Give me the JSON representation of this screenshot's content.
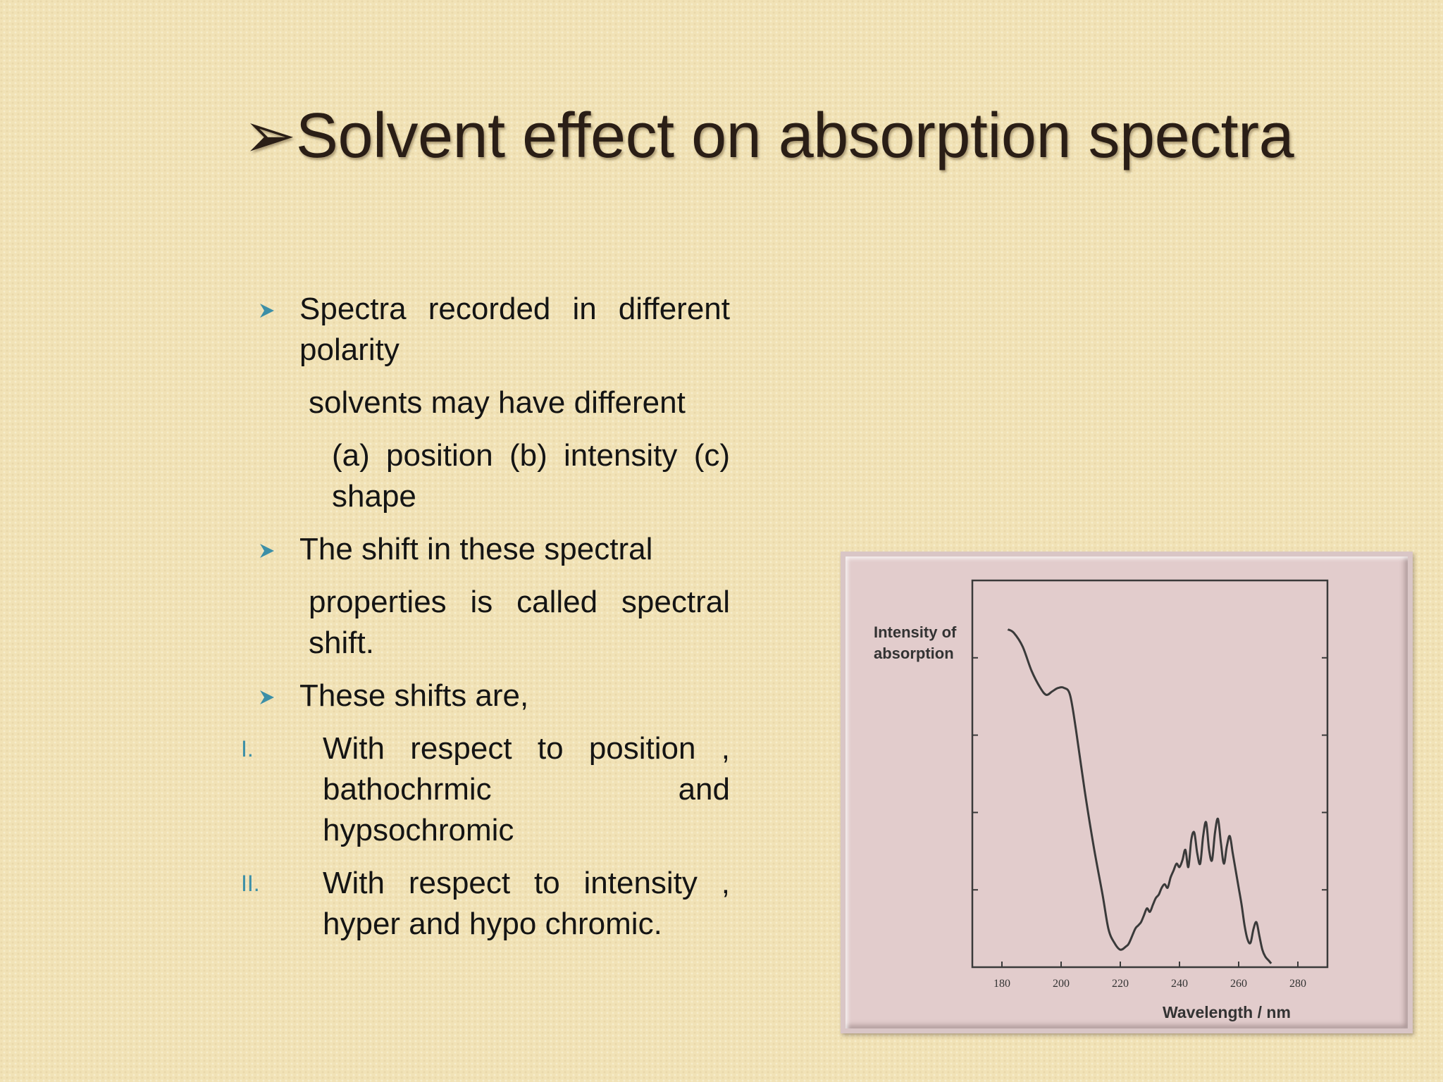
{
  "slide": {
    "title": "Solvent effect on absorption spectra",
    "bullets": [
      {
        "text": "Spectra recorded in different polarity"
      },
      {
        "text": "solvents may have different"
      },
      {
        "text": "(a) position (b) intensity (c) shape"
      },
      {
        "text": "The shift in these spectral"
      },
      {
        "text": "properties is called spectral shift."
      },
      {
        "text": "These shifts are,"
      },
      {
        "marker": "I.",
        "text": "With respect to position , bathochrmic and hypsochromic"
      },
      {
        "marker": "II.",
        "text": "With respect to intensity , hyper and hypo chromic."
      }
    ]
  },
  "colors": {
    "accent": "#3c8fa7",
    "background": "#f1e2b6",
    "figure_bg": "#e2cccc"
  },
  "chart_data": {
    "type": "line",
    "title": "",
    "ylabel": "Intensity of absorption",
    "xlabel": "Wavelength / nm",
    "xlim": [
      170,
      290
    ],
    "x_ticks": [
      "180",
      "200",
      "220",
      "240",
      "260",
      "280"
    ],
    "yticks_labeled": false,
    "series": [
      {
        "x": [
          182,
          184,
          187,
          190,
          193,
          195,
          197,
          199,
          201,
          203,
          205,
          208,
          211,
          214,
          216,
          218,
          220,
          222,
          223,
          225,
          226,
          227,
          228,
          229,
          230,
          231,
          232,
          233,
          234,
          235,
          236,
          237,
          238,
          239,
          240,
          241,
          242,
          243,
          244,
          245,
          246,
          247,
          248,
          249,
          250,
          251,
          252,
          253,
          254,
          255,
          256,
          257,
          258,
          259,
          260,
          261,
          262,
          263,
          264,
          265,
          266,
          267,
          268,
          269,
          270,
          271
        ],
        "y": [
          0.95,
          0.94,
          0.9,
          0.83,
          0.78,
          0.76,
          0.77,
          0.78,
          0.78,
          0.76,
          0.66,
          0.48,
          0.32,
          0.18,
          0.08,
          0.04,
          0.02,
          0.03,
          0.04,
          0.08,
          0.09,
          0.1,
          0.12,
          0.14,
          0.13,
          0.15,
          0.17,
          0.18,
          0.2,
          0.21,
          0.2,
          0.23,
          0.25,
          0.27,
          0.26,
          0.28,
          0.31,
          0.26,
          0.34,
          0.36,
          0.3,
          0.27,
          0.35,
          0.39,
          0.31,
          0.28,
          0.36,
          0.4,
          0.33,
          0.27,
          0.32,
          0.35,
          0.3,
          0.25,
          0.2,
          0.15,
          0.09,
          0.05,
          0.04,
          0.08,
          0.1,
          0.06,
          0.02,
          0.0,
          -0.01,
          -0.02
        ]
      }
    ]
  }
}
